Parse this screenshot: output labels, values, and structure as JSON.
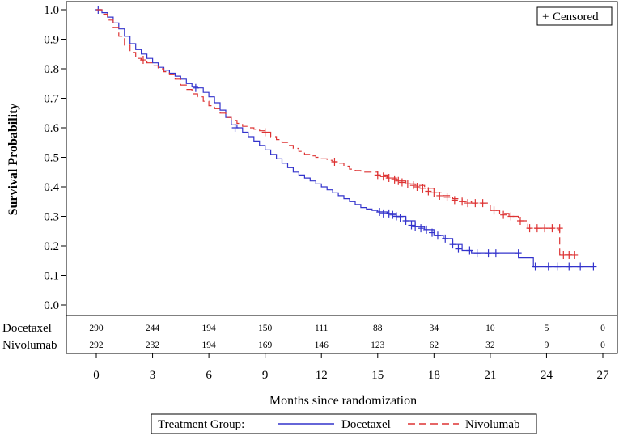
{
  "chart_data": {
    "type": "line",
    "title": "",
    "xlabel": "Months since randomization",
    "ylabel": "Survival Probability",
    "xlim": [
      0,
      27
    ],
    "ylim": [
      0,
      1
    ],
    "x_ticks": [
      0,
      3,
      6,
      9,
      12,
      15,
      18,
      21,
      24,
      27
    ],
    "y_ticks": [
      0.0,
      0.1,
      0.2,
      0.3,
      0.4,
      0.5,
      0.6,
      0.7,
      0.8,
      0.9,
      1.0
    ],
    "y_tick_labels": [
      "0.0",
      "0.1",
      "0.2",
      "0.3",
      "0.4",
      "0.5",
      "0.6",
      "0.7",
      "0.8",
      "0.9",
      "1.0"
    ],
    "censored_label": "Censored",
    "censored_symbol": "+",
    "legend": {
      "title": "Treatment Group:",
      "placement": "bottom"
    },
    "series": [
      {
        "name": "Docetaxel",
        "color": "#3333cc",
        "style": "solid",
        "steps": [
          [
            0,
            1.0
          ],
          [
            0.3,
            0.99
          ],
          [
            0.6,
            0.975
          ],
          [
            0.9,
            0.955
          ],
          [
            1.2,
            0.935
          ],
          [
            1.5,
            0.91
          ],
          [
            1.8,
            0.885
          ],
          [
            2.1,
            0.865
          ],
          [
            2.4,
            0.85
          ],
          [
            2.7,
            0.835
          ],
          [
            3.0,
            0.82
          ],
          [
            3.3,
            0.805
          ],
          [
            3.6,
            0.795
          ],
          [
            3.9,
            0.785
          ],
          [
            4.2,
            0.775
          ],
          [
            4.5,
            0.765
          ],
          [
            4.8,
            0.75
          ],
          [
            5.1,
            0.74
          ],
          [
            5.4,
            0.735
          ],
          [
            5.7,
            0.72
          ],
          [
            6.0,
            0.705
          ],
          [
            6.3,
            0.685
          ],
          [
            6.6,
            0.66
          ],
          [
            6.9,
            0.635
          ],
          [
            7.2,
            0.61
          ],
          [
            7.5,
            0.6
          ],
          [
            7.8,
            0.585
          ],
          [
            8.1,
            0.57
          ],
          [
            8.4,
            0.555
          ],
          [
            8.7,
            0.54
          ],
          [
            9.0,
            0.525
          ],
          [
            9.3,
            0.51
          ],
          [
            9.6,
            0.495
          ],
          [
            9.9,
            0.48
          ],
          [
            10.2,
            0.465
          ],
          [
            10.5,
            0.45
          ],
          [
            10.8,
            0.44
          ],
          [
            11.1,
            0.43
          ],
          [
            11.4,
            0.42
          ],
          [
            11.7,
            0.41
          ],
          [
            12.0,
            0.4
          ],
          [
            12.3,
            0.39
          ],
          [
            12.6,
            0.38
          ],
          [
            12.9,
            0.37
          ],
          [
            13.2,
            0.36
          ],
          [
            13.5,
            0.35
          ],
          [
            13.8,
            0.34
          ],
          [
            14.1,
            0.33
          ],
          [
            14.4,
            0.325
          ],
          [
            14.7,
            0.32
          ],
          [
            15.0,
            0.315
          ],
          [
            15.5,
            0.31
          ],
          [
            16.0,
            0.3
          ],
          [
            16.5,
            0.285
          ],
          [
            17.0,
            0.265
          ],
          [
            17.5,
            0.255
          ],
          [
            18.0,
            0.235
          ],
          [
            18.5,
            0.225
          ],
          [
            19.0,
            0.205
          ],
          [
            19.5,
            0.185
          ],
          [
            20.0,
            0.175
          ],
          [
            20.5,
            0.175
          ],
          [
            22.5,
            0.16
          ],
          [
            23.3,
            0.13
          ],
          [
            26.5,
            0.13
          ]
        ],
        "censors": [
          [
            0.1,
            1.0
          ],
          [
            5.3,
            0.735
          ],
          [
            7.4,
            0.6
          ],
          [
            15.1,
            0.315
          ],
          [
            15.3,
            0.31
          ],
          [
            15.6,
            0.31
          ],
          [
            15.8,
            0.305
          ],
          [
            16.0,
            0.3
          ],
          [
            16.2,
            0.295
          ],
          [
            16.5,
            0.285
          ],
          [
            16.8,
            0.27
          ],
          [
            17.0,
            0.265
          ],
          [
            17.3,
            0.26
          ],
          [
            17.6,
            0.255
          ],
          [
            17.9,
            0.245
          ],
          [
            18.2,
            0.235
          ],
          [
            18.6,
            0.225
          ],
          [
            19.0,
            0.205
          ],
          [
            19.3,
            0.19
          ],
          [
            19.9,
            0.185
          ],
          [
            20.3,
            0.175
          ],
          [
            20.9,
            0.175
          ],
          [
            21.3,
            0.175
          ],
          [
            22.5,
            0.175
          ],
          [
            23.4,
            0.13
          ],
          [
            24.1,
            0.13
          ],
          [
            24.6,
            0.13
          ],
          [
            25.2,
            0.13
          ],
          [
            25.8,
            0.13
          ],
          [
            26.5,
            0.13
          ]
        ]
      },
      {
        "name": "Nivolumab",
        "color": "#dd3333",
        "style": "dashed",
        "steps": [
          [
            0,
            1.0
          ],
          [
            0.3,
            0.985
          ],
          [
            0.6,
            0.965
          ],
          [
            0.9,
            0.94
          ],
          [
            1.2,
            0.91
          ],
          [
            1.5,
            0.88
          ],
          [
            1.8,
            0.855
          ],
          [
            2.1,
            0.835
          ],
          [
            2.4,
            0.83
          ],
          [
            2.7,
            0.82
          ],
          [
            3.0,
            0.81
          ],
          [
            3.3,
            0.8
          ],
          [
            3.6,
            0.79
          ],
          [
            3.9,
            0.78
          ],
          [
            4.2,
            0.765
          ],
          [
            4.5,
            0.745
          ],
          [
            4.8,
            0.73
          ],
          [
            5.1,
            0.715
          ],
          [
            5.4,
            0.705
          ],
          [
            5.7,
            0.69
          ],
          [
            6.0,
            0.675
          ],
          [
            6.3,
            0.665
          ],
          [
            6.6,
            0.65
          ],
          [
            6.9,
            0.635
          ],
          [
            7.2,
            0.625
          ],
          [
            7.5,
            0.615
          ],
          [
            7.8,
            0.605
          ],
          [
            8.1,
            0.6
          ],
          [
            8.4,
            0.595
          ],
          [
            8.7,
            0.59
          ],
          [
            9.0,
            0.585
          ],
          [
            9.3,
            0.57
          ],
          [
            9.6,
            0.56
          ],
          [
            9.9,
            0.55
          ],
          [
            10.2,
            0.54
          ],
          [
            10.5,
            0.53
          ],
          [
            10.8,
            0.52
          ],
          [
            11.1,
            0.51
          ],
          [
            11.4,
            0.505
          ],
          [
            11.7,
            0.5
          ],
          [
            12.0,
            0.495
          ],
          [
            12.3,
            0.49
          ],
          [
            12.6,
            0.485
          ],
          [
            12.9,
            0.48
          ],
          [
            13.2,
            0.47
          ],
          [
            13.5,
            0.46
          ],
          [
            13.8,
            0.455
          ],
          [
            14.1,
            0.45
          ],
          [
            14.5,
            0.45
          ],
          [
            15.0,
            0.44
          ],
          [
            15.5,
            0.43
          ],
          [
            16.0,
            0.42
          ],
          [
            16.5,
            0.41
          ],
          [
            17.0,
            0.405
          ],
          [
            17.5,
            0.395
          ],
          [
            18.0,
            0.38
          ],
          [
            18.5,
            0.37
          ],
          [
            19.0,
            0.36
          ],
          [
            19.5,
            0.35
          ],
          [
            20.0,
            0.345
          ],
          [
            20.5,
            0.345
          ],
          [
            21.0,
            0.32
          ],
          [
            21.5,
            0.31
          ],
          [
            22.0,
            0.3
          ],
          [
            22.5,
            0.285
          ],
          [
            23.0,
            0.26
          ],
          [
            24.0,
            0.26
          ],
          [
            24.6,
            0.255
          ],
          [
            24.7,
            0.17
          ],
          [
            25.5,
            0.17
          ]
        ],
        "censors": [
          [
            2.5,
            0.83
          ],
          [
            9.0,
            0.585
          ],
          [
            12.7,
            0.485
          ],
          [
            15.0,
            0.44
          ],
          [
            15.3,
            0.435
          ],
          [
            15.6,
            0.43
          ],
          [
            15.9,
            0.425
          ],
          [
            16.1,
            0.42
          ],
          [
            16.3,
            0.415
          ],
          [
            16.6,
            0.41
          ],
          [
            16.9,
            0.405
          ],
          [
            17.1,
            0.4
          ],
          [
            17.4,
            0.395
          ],
          [
            17.7,
            0.385
          ],
          [
            18.0,
            0.38
          ],
          [
            18.3,
            0.37
          ],
          [
            18.7,
            0.365
          ],
          [
            19.1,
            0.355
          ],
          [
            19.5,
            0.35
          ],
          [
            19.8,
            0.345
          ],
          [
            20.2,
            0.345
          ],
          [
            20.6,
            0.345
          ],
          [
            21.2,
            0.32
          ],
          [
            21.7,
            0.305
          ],
          [
            22.1,
            0.3
          ],
          [
            22.6,
            0.285
          ],
          [
            23.1,
            0.26
          ],
          [
            23.5,
            0.26
          ],
          [
            23.9,
            0.26
          ],
          [
            24.3,
            0.26
          ],
          [
            24.7,
            0.26
          ],
          [
            24.9,
            0.17
          ],
          [
            25.2,
            0.17
          ],
          [
            25.5,
            0.17
          ]
        ]
      }
    ],
    "risk_table": {
      "times": [
        0,
        3,
        6,
        9,
        12,
        15,
        18,
        21,
        24,
        27
      ],
      "rows": [
        {
          "label": "Docetaxel",
          "counts": [
            "290",
            "244",
            "194",
            "150",
            "111",
            "88",
            "34",
            "10",
            "5",
            "0"
          ]
        },
        {
          "label": "Nivolumab",
          "counts": [
            "292",
            "232",
            "194",
            "169",
            "146",
            "123",
            "62",
            "32",
            "9",
            "0"
          ]
        }
      ]
    }
  }
}
